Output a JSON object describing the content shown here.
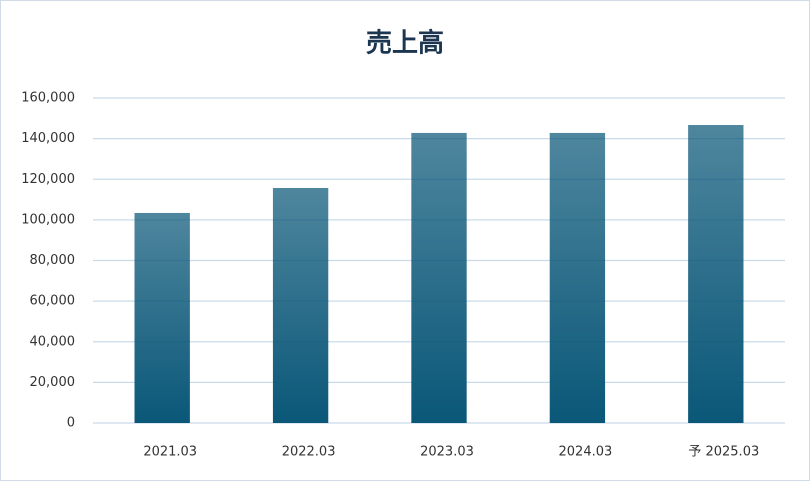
{
  "chart_data": {
    "type": "bar",
    "title": "売上高",
    "categories": [
      "2021.03",
      "2022.03",
      "2023.03",
      "2024.03",
      "予 2025.03"
    ],
    "values": [
      103400,
      115700,
      142800,
      142800,
      146700
    ],
    "color": "#0a5778",
    "ylim": [
      0,
      160000
    ],
    "yticks": [
      0,
      {
        "value": 20000,
        "label": "20,000"
      },
      {
        "value": 40000,
        "label": "40,000"
      },
      {
        "value": 60000,
        "label": "60,000"
      },
      {
        "value": 80000,
        "label": "80,000"
      },
      {
        "value": 100000,
        "label": "100,000"
      },
      {
        "value": 120000,
        "label": "120,000"
      },
      {
        "value": 140000,
        "label": "140,000"
      },
      {
        "value": 160000,
        "label": "160,000"
      }
    ],
    "grid": true
  }
}
